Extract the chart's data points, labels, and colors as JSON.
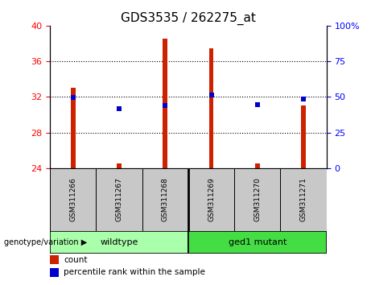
{
  "title": "GDS3535 / 262275_at",
  "samples": [
    "GSM311266",
    "GSM311267",
    "GSM311268",
    "GSM311269",
    "GSM311270",
    "GSM311271"
  ],
  "red_values": [
    33.0,
    24.5,
    38.5,
    37.5,
    24.5,
    31.0
  ],
  "blue_values_left": [
    31.9,
    30.7,
    31.0,
    32.2,
    31.15,
    31.75
  ],
  "bar_bottom": 24.0,
  "ylim_left": [
    24,
    40
  ],
  "ylim_right": [
    0,
    100
  ],
  "yticks_left": [
    24,
    28,
    32,
    36,
    40
  ],
  "yticks_right": [
    0,
    25,
    50,
    75,
    100
  ],
  "ytick_labels_right": [
    "0",
    "25",
    "50",
    "75",
    "100%"
  ],
  "bar_color": "#CC2200",
  "blue_color": "#0000CC",
  "bg_plot": "#FFFFFF",
  "bg_group_wildtype": "#AAFFAA",
  "bg_group_ged1": "#44DD44",
  "legend_red_label": "count",
  "legend_blue_label": "percentile rank within the sample",
  "group_label": "genotype/variation",
  "figsize": [
    4.61,
    3.54
  ],
  "dpi": 100
}
